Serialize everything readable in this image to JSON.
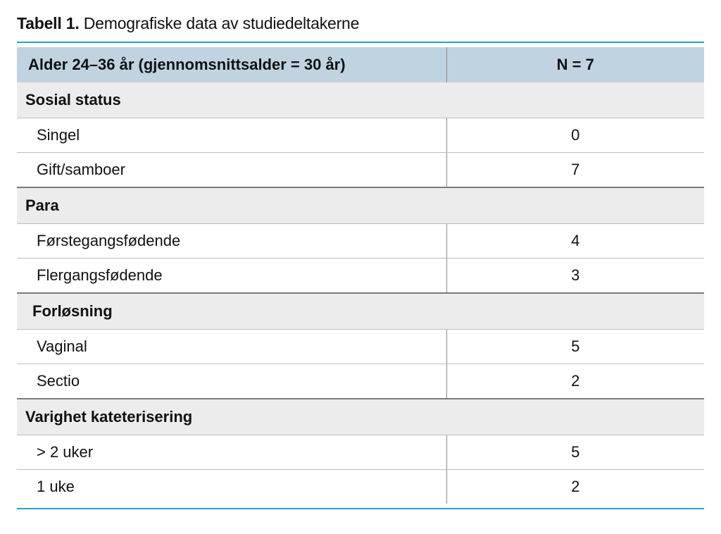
{
  "caption": {
    "label": "Tabell 1.",
    "text": "Demografiske data av studiedeltakerne"
  },
  "style": {
    "rule_color": "#2aa0c8",
    "header_bg": "#c0d3e0",
    "section_bg": "#ececec",
    "sep_color": "#8a8a8a",
    "thin_border": "#bdbdbd",
    "mid_border": "#7a7a7a",
    "col_label_pct": 62.5,
    "col_value_pct": 37.5,
    "font_size_body": 22,
    "font_size_caption": 23
  },
  "header": {
    "label": "Alder 24–36 år  (gjennomsnittsalder = 30 år)",
    "value": "N = 7"
  },
  "sections": [
    {
      "title": "Sosial status",
      "rows": [
        {
          "label": "Singel",
          "value": "0"
        },
        {
          "label": "Gift/samboer",
          "value": "7"
        }
      ]
    },
    {
      "title": "Para",
      "rows": [
        {
          "label": "Førstegangsfødende",
          "value": "4"
        },
        {
          "label": "Flergangsfødende",
          "value": "3"
        }
      ]
    },
    {
      "title": "Forløsning",
      "title_indent": true,
      "rows": [
        {
          "label": "Vaginal",
          "value": "5"
        },
        {
          "label": "Sectio",
          "value": "2"
        }
      ]
    },
    {
      "title": "Varighet kateterisering",
      "rows": [
        {
          "label": "> 2 uker",
          "value": "5"
        },
        {
          "label": "1 uke",
          "value": "2"
        }
      ]
    }
  ]
}
